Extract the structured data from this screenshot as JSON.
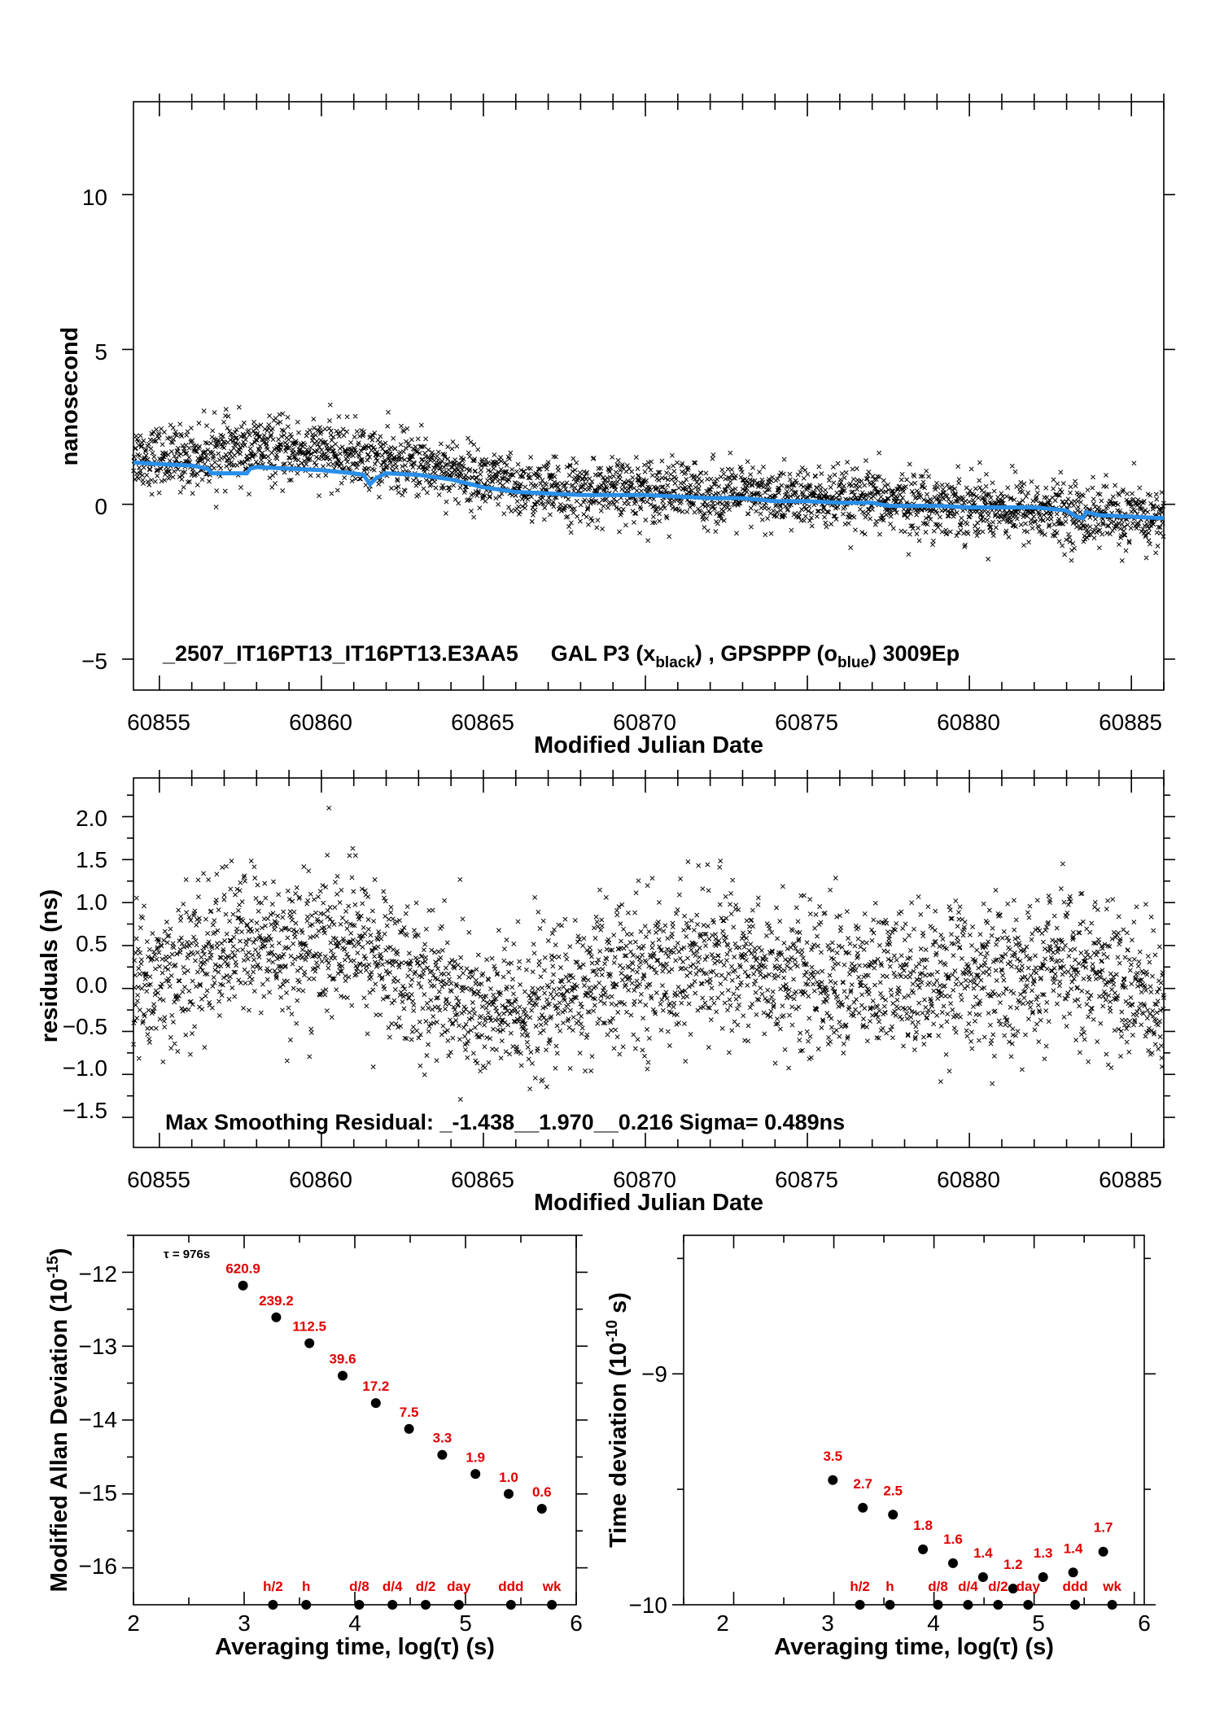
{
  "colors": {
    "black": "#000000",
    "blue": "#2a8fe8",
    "red": "#e00000"
  },
  "panels": {
    "phase": {
      "ylabel": "nanosecond",
      "xlabel": "Modified Julian Date",
      "xticks": [
        "60855",
        "60860",
        "60865",
        "60870",
        "60875",
        "60880",
        "60885"
      ],
      "yticks": [
        "10",
        "5",
        "0",
        "−5"
      ],
      "annotation": {
        "id": "_2507_IT16PT13_IT16PT13.E3AA5",
        "p1": "GAL P3 (x",
        "s1": "black",
        "p2": ") ,  GPSPPP (o",
        "s2": "blue",
        "p3": ")  3009Ep"
      }
    },
    "residuals": {
      "ylabel": "residuals (ns)",
      "xlabel": "Modified Julian Date",
      "xticks": [
        "60855",
        "60860",
        "60865",
        "60870",
        "60875",
        "60880",
        "60885"
      ],
      "yticks": [
        "2.0",
        "1.5",
        "1.0",
        "0.5",
        "0.0",
        "−0.5",
        "−1.0",
        "−1.5"
      ],
      "annotation": "Max Smoothing Residual: _-1.438__1.970__0.216  Sigma= 0.489ns"
    },
    "mdev": {
      "ylabel_main": "Modified Allan Deviation (10",
      "ylabel_exp": "-15",
      "ylabel_end": ")",
      "xlabel": "Averaging time, log(τ) (s)",
      "xticks": [
        "2",
        "3",
        "4",
        "5",
        "6"
      ],
      "yticks": [
        "−12",
        "−13",
        "−14",
        "−15",
        "−16"
      ],
      "tau_label": "τ = 976s"
    },
    "tdev": {
      "ylabel_main": "Time deviation (10",
      "ylabel_exp": "-10",
      "ylabel_end": " s)",
      "xlabel": "Averaging time, log(τ) (s)",
      "xticks": [
        "2",
        "3",
        "4",
        "5",
        "6"
      ],
      "yticks": [
        "−9",
        "−10"
      ]
    }
  },
  "chart_data": [
    {
      "type": "scatter",
      "title": "_2507_IT16PT13_IT16PT13.E3AA5    GAL P3 (x black) ,  GPSPPP (o blue)  3009Ep",
      "xlabel": "Modified Julian Date",
      "ylabel": "nanosecond",
      "xlim": [
        60854.2,
        60886.0
      ],
      "ylim": [
        -6.0,
        13.0
      ],
      "grid": false,
      "series": [
        {
          "marker": "x",
          "color": "#000000",
          "trend_x": [
            60854.2,
            60855,
            60856,
            60857,
            60858,
            60859,
            60860,
            60861,
            60862,
            60863,
            60864,
            60865,
            60866,
            60867,
            60868,
            60869,
            60870,
            60871,
            60872,
            60873,
            60874,
            60875,
            60876,
            60877,
            60878,
            60879,
            60880,
            60881,
            60882,
            60883,
            60884,
            60885,
            60886
          ],
          "trend_y": [
            1.6,
            1.5,
            1.5,
            1.7,
            1.8,
            1.7,
            1.7,
            1.6,
            1.4,
            1.3,
            1.1,
            0.8,
            0.5,
            0.4,
            0.4,
            0.4,
            0.5,
            0.4,
            0.3,
            0.3,
            0.2,
            0.2,
            0.1,
            0.1,
            0.05,
            0.0,
            -0.05,
            -0.1,
            -0.2,
            -0.3,
            -0.35,
            -0.45,
            -0.5
          ],
          "scatter_sigma": 0.5,
          "point_count": 2900
        },
        {
          "marker": "o",
          "color": "#2a8fe8",
          "x": [
            60854.2,
            60855,
            60856,
            60856.5,
            60856.6,
            60857,
            60857.7,
            60857.8,
            60858,
            60859,
            60860,
            60861,
            60861.3,
            60861.5,
            60861.7,
            60862,
            60863,
            60864,
            60865,
            60866,
            60867,
            60868,
            60869,
            60870,
            60871,
            60872,
            60873,
            60874,
            60875,
            60876,
            60877,
            60877.5,
            60878,
            60879,
            60880,
            60881,
            60882,
            60882.5,
            60883,
            60883.3,
            60883.5,
            60883.6,
            60884,
            60885,
            60886
          ],
          "y": [
            1.35,
            1.3,
            1.25,
            1.15,
            1.0,
            1.0,
            1.0,
            1.15,
            1.2,
            1.15,
            1.1,
            1.0,
            0.95,
            0.65,
            0.85,
            1.0,
            0.95,
            0.8,
            0.55,
            0.4,
            0.35,
            0.3,
            0.3,
            0.3,
            0.25,
            0.2,
            0.2,
            0.1,
            0.1,
            0.05,
            0.05,
            -0.05,
            -0.05,
            -0.05,
            -0.1,
            -0.1,
            -0.1,
            -0.15,
            -0.2,
            -0.4,
            -0.45,
            -0.25,
            -0.35,
            -0.4,
            -0.45
          ]
        }
      ]
    },
    {
      "type": "scatter",
      "xlabel": "Modified Julian Date",
      "ylabel": "residuals (ns)",
      "xlim": [
        60854.2,
        60886.0
      ],
      "ylim": [
        -1.85,
        2.45
      ],
      "grid": false,
      "series": [
        {
          "marker": "x",
          "color": "#000000",
          "trend_x": [
            60854.2,
            60855,
            60856,
            60857,
            60858,
            60859,
            60860,
            60861,
            60862,
            60863,
            60864,
            60865,
            60866,
            60867,
            60868,
            60869,
            60870,
            60871,
            60872,
            60873,
            60874,
            60875,
            60876,
            60877,
            60878,
            60879,
            60880,
            60881,
            60882,
            60883,
            60884,
            60885,
            60886
          ],
          "trend_y": [
            0.1,
            0.1,
            0.25,
            0.5,
            0.55,
            0.45,
            0.5,
            0.55,
            0.3,
            0.1,
            -0.05,
            -0.3,
            -0.25,
            -0.15,
            0.0,
            0.1,
            0.2,
            0.3,
            0.35,
            0.3,
            0.15,
            0.15,
            0.1,
            0.05,
            0.1,
            0.15,
            0.15,
            0.1,
            0.1,
            0.3,
            0.2,
            -0.05,
            -0.1
          ],
          "scatter_sigma": 0.42,
          "point_count": 2900
        }
      ]
    },
    {
      "type": "scatter",
      "xlabel": "Averaging time, log(τ) (s)",
      "ylabel": "Modified Allan Deviation (10-15)",
      "xlim": [
        2,
        6
      ],
      "ylim": [
        -16.5,
        -11.5
      ],
      "series": [
        {
          "name": "MDEV",
          "x": [
            2.99,
            3.29,
            3.59,
            3.89,
            4.19,
            4.49,
            4.79,
            5.09,
            5.39,
            5.69
          ],
          "y": [
            -12.18,
            -12.61,
            -12.96,
            -13.4,
            -13.77,
            -14.12,
            -14.47,
            -14.73,
            -15.0,
            -15.2
          ],
          "labels": [
            "620.9",
            "239.2",
            "112.5",
            "39.6",
            "17.2",
            "7.5",
            "3.3",
            "1.9",
            "1.0",
            "0.6"
          ]
        }
      ],
      "averaging_markers": {
        "x": [
          3.26,
          3.56,
          4.04,
          4.34,
          4.64,
          4.94,
          5.41,
          5.78
        ],
        "labels": [
          "h/2",
          "h",
          "d/8",
          "d/4",
          "d/2",
          "day",
          "ddd",
          "wk"
        ]
      }
    },
    {
      "type": "scatter",
      "xlabel": "Averaging time, log(τ) (s)",
      "ylabel": "Time deviation (10-10 s)",
      "xlim": [
        1.5,
        6.1
      ],
      "ylim": [
        -10,
        -8.4
      ],
      "series": [
        {
          "name": "TDEV",
          "x": [
            2.99,
            3.29,
            3.59,
            3.89,
            4.19,
            4.49,
            4.79,
            5.09,
            5.39,
            5.69
          ],
          "y": [
            -9.46,
            -9.58,
            -9.61,
            -9.76,
            -9.82,
            -9.88,
            -9.93,
            -9.88,
            -9.86,
            -9.77
          ],
          "labels": [
            "3.5",
            "2.7",
            "2.5",
            "1.8",
            "1.6",
            "1.4",
            "1.2",
            "1.3",
            "1.4",
            "1.7"
          ]
        }
      ],
      "averaging_markers": {
        "x": [
          3.26,
          3.56,
          4.04,
          4.34,
          4.64,
          4.94,
          5.41,
          5.78
        ],
        "labels": [
          "h/2",
          "h",
          "d/8",
          "d/4",
          "d/2",
          "day",
          "ddd",
          "wk"
        ]
      }
    }
  ]
}
